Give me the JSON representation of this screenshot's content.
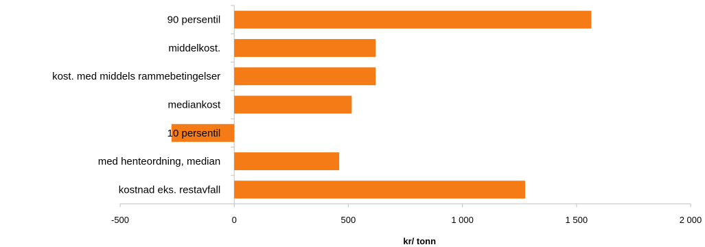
{
  "chart_data": {
    "type": "bar",
    "orientation": "horizontal",
    "categories": [
      "90 persentil",
      "middelkost.",
      "kost. med middels rammebetingelser",
      "mediankost",
      "10 persentil",
      "med henteordning, median",
      "kostnad eks. restavfall"
    ],
    "values": [
      1565,
      620,
      620,
      515,
      -275,
      460,
      1275
    ],
    "xlim": [
      -500,
      2000
    ],
    "xticks": [
      -500,
      0,
      500,
      1000,
      1500,
      2000
    ],
    "xtick_labels": [
      "-500",
      "0",
      "500",
      "1 000",
      "1 500",
      "2 000"
    ],
    "xlabel": "kr/ tonn",
    "ylabel": "",
    "title": "",
    "grid": false,
    "colors": {
      "bar": "#F57B16",
      "axis": "#bfbfbf"
    }
  }
}
